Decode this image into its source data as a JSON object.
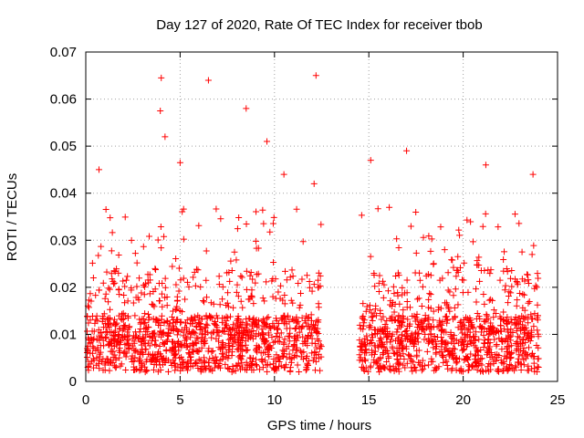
{
  "chart_data": {
    "type": "scatter",
    "title": "Day 127 of 2020, Rate Of TEC Index for receiver tbob",
    "xlabel": "GPS time / hours",
    "ylabel": "ROTI / TECUs",
    "xlim": [
      0,
      25
    ],
    "ylim": [
      0,
      0.07
    ],
    "x_ticks": [
      0,
      5,
      10,
      15,
      20,
      25
    ],
    "x_tick_labels": [
      "0",
      "5",
      "10",
      "15",
      "20",
      "25"
    ],
    "y_ticks": [
      0,
      0.01,
      0.02,
      0.03,
      0.04,
      0.05,
      0.06,
      0.07
    ],
    "y_tick_labels": [
      "0",
      "0.01",
      "0.02",
      "0.03",
      "0.04",
      "0.05",
      "0.06",
      "0.07"
    ],
    "grid": true,
    "marker": "+",
    "marker_color": "#ff0000",
    "data_gaps_hours": [
      [
        12.5,
        14.5
      ]
    ],
    "highlights": [
      {
        "x": 4.0,
        "y": 0.0645
      },
      {
        "x": 6.5,
        "y": 0.064
      },
      {
        "x": 12.2,
        "y": 0.065
      },
      {
        "x": 8.5,
        "y": 0.058
      },
      {
        "x": 3.95,
        "y": 0.0575
      },
      {
        "x": 4.2,
        "y": 0.052
      },
      {
        "x": 9.6,
        "y": 0.051
      },
      {
        "x": 17.0,
        "y": 0.049
      },
      {
        "x": 15.1,
        "y": 0.047
      },
      {
        "x": 0.7,
        "y": 0.045
      },
      {
        "x": 21.2,
        "y": 0.046
      },
      {
        "x": 23.7,
        "y": 0.044
      },
      {
        "x": 10.5,
        "y": 0.044
      },
      {
        "x": 12.1,
        "y": 0.042
      },
      {
        "x": 5.0,
        "y": 0.0465
      }
    ]
  }
}
